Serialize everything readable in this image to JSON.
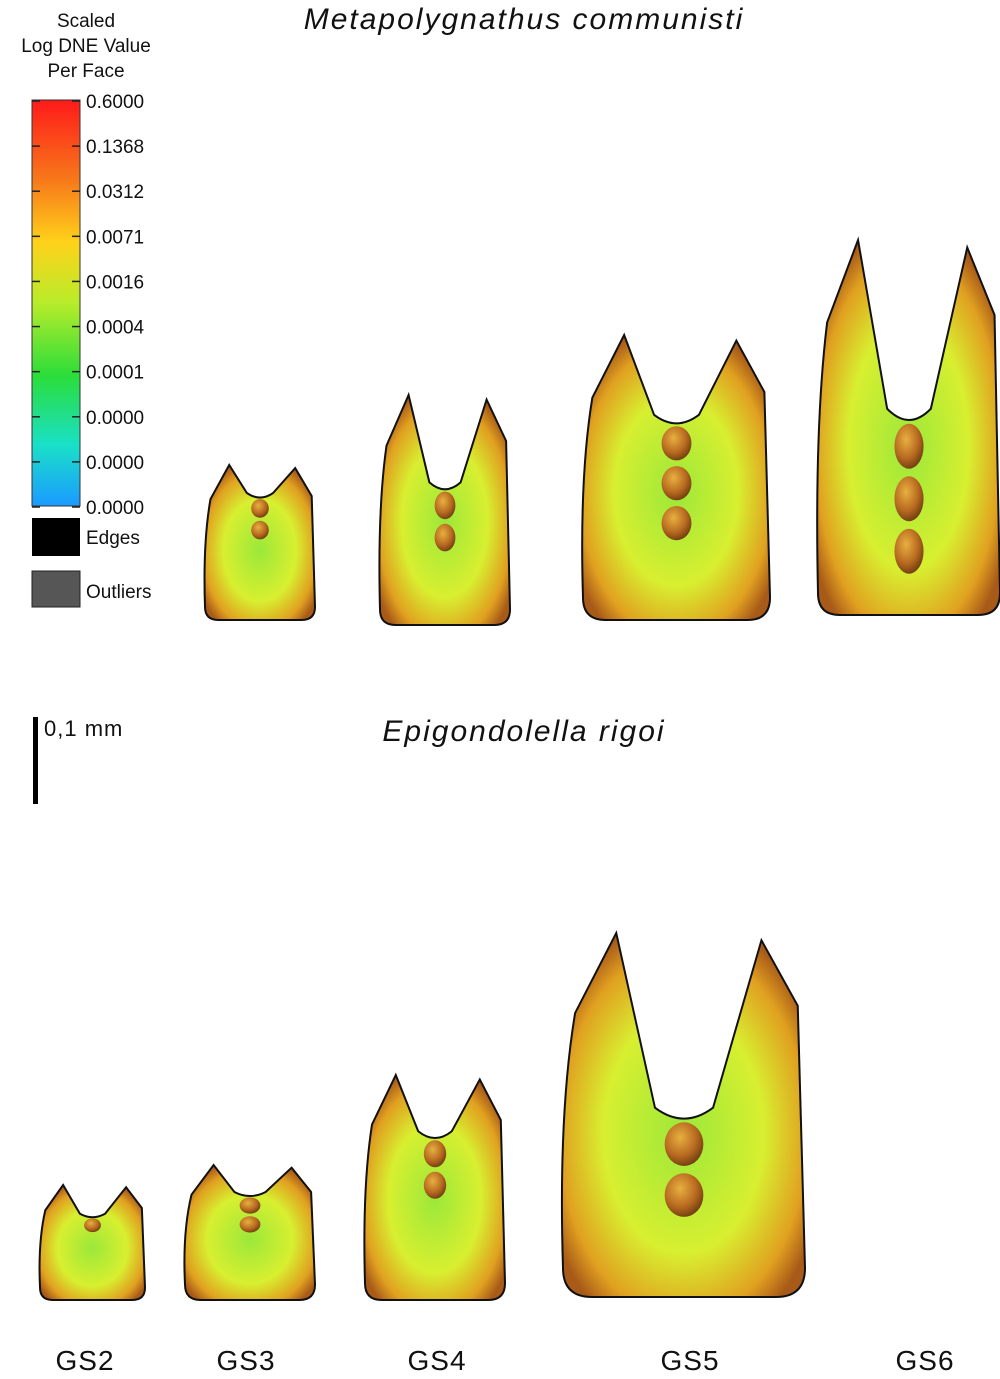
{
  "legend": {
    "title": [
      "Scaled",
      "Log DNE Value",
      "Per Face"
    ],
    "ticks": [
      "0.6000",
      "0.1368",
      "0.0312",
      "0.0071",
      "0.0016",
      "0.0004",
      "0.0001",
      "0.0000",
      "0.0000",
      "0.0000"
    ],
    "edges": "Edges",
    "outliers": "Outliers"
  },
  "panels": [
    {
      "species": "Metapolygnathus communisti"
    },
    {
      "species": "Epigondolella rigoi"
    }
  ],
  "scale_bar": "0,1 mm",
  "stages": [
    "GS2",
    "GS3",
    "GS4",
    "GS5",
    "GS6"
  ]
}
